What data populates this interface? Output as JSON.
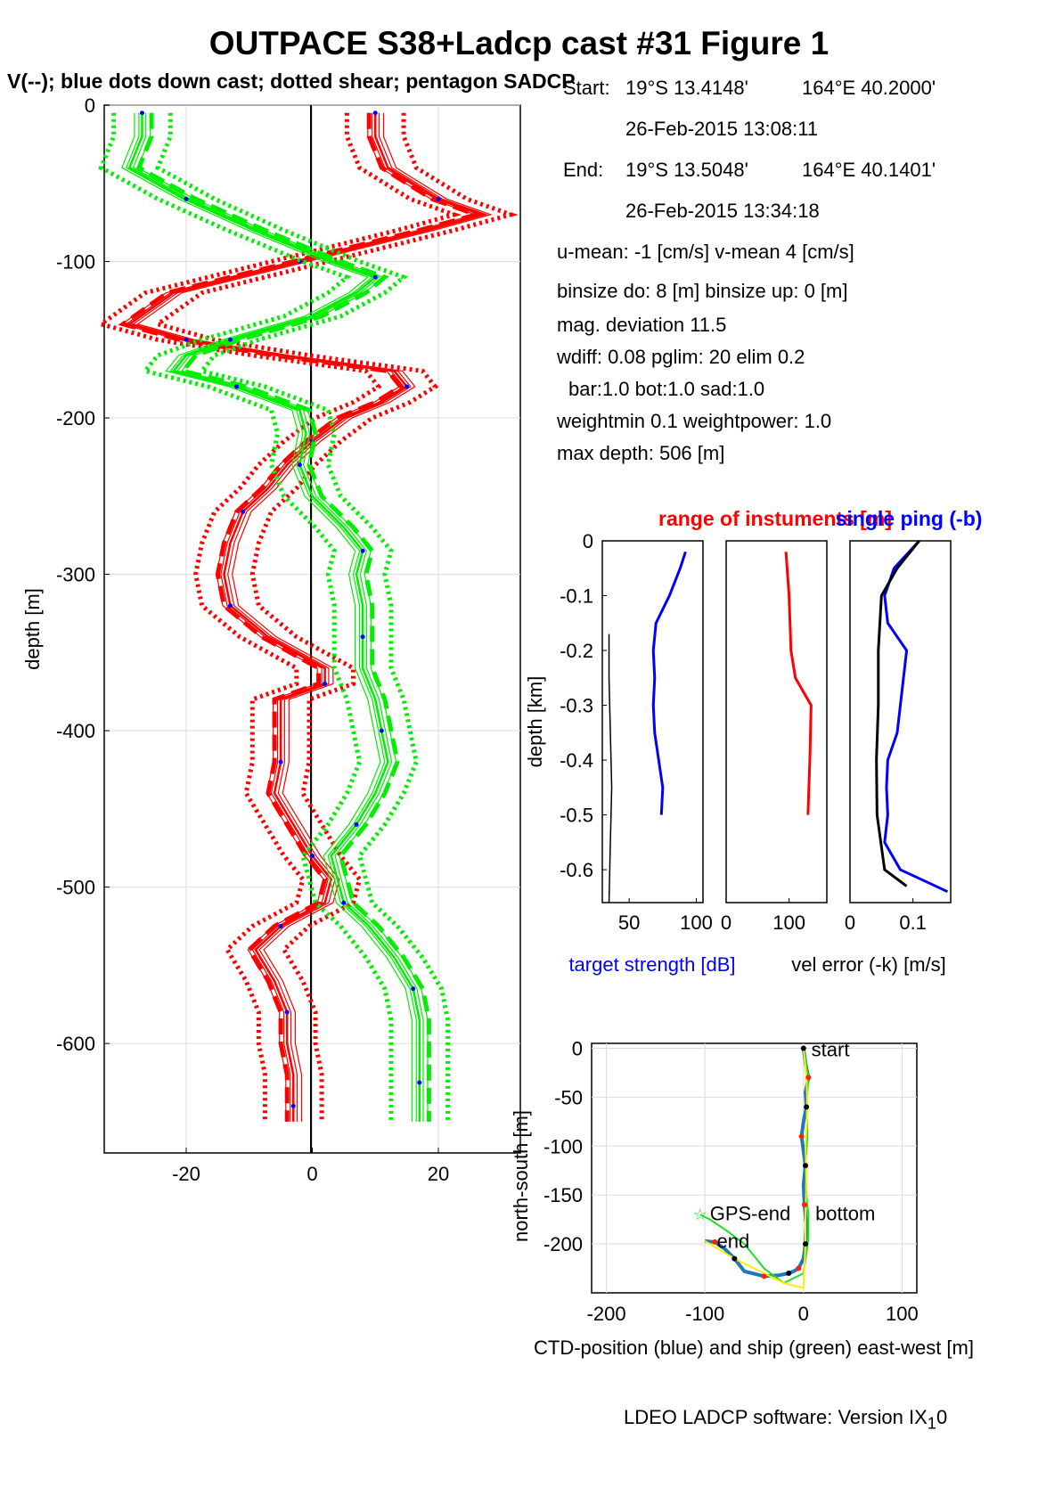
{
  "title": "OUTPACE S38+Ladcp cast #31  Figure 1",
  "subtitle": "V(--); blue dots down cast; dotted shear; pentagon SADCP",
  "info": {
    "start_label": "Start:",
    "start_lat": "19°S 13.4148'",
    "start_lon": "164°E 40.2000'",
    "start_time": "26-Feb-2015 13:08:11",
    "end_label": "End:",
    "end_lat": "19°S 13.5048'",
    "end_lon": "164°E 40.1401'",
    "end_time": "26-Feb-2015 13:34:18",
    "means": "u-mean:  -1 [cm/s]    v-mean   4 [cm/s]",
    "binsize": "binsize do: 8 [m]  binsize up:  0 [m]",
    "magdev": "mag. deviation 11.5",
    "wdiff": "wdiff: 0.08  pglim: 20  elim 0.2",
    "bar": "bar:1.0 bot:1.0 sad:1.0",
    "weight": "weightmin 0.1  weightpower: 1.0",
    "maxdepth": "max depth: 506 [m]"
  },
  "footer": "LDEO LADCP software: Version IX",
  "footer_sub": "1",
  "footer_tail": "0",
  "chart_data": [
    {
      "type": "line",
      "ylabel": "depth [m]",
      "xlim": [
        -33,
        33
      ],
      "ylim": [
        -670,
        0
      ],
      "xticks": [
        "-20",
        "0",
        "20"
      ],
      "yticks": [
        "0",
        "-100",
        "-200",
        "-300",
        "-400",
        "-500",
        "-600"
      ],
      "grid": true,
      "series": [
        {
          "color": "#ff0000",
          "style": "solid",
          "depth": [
            -5,
            -20,
            -40,
            -60,
            -70,
            -80,
            -100,
            -120,
            -140,
            -150,
            -160,
            -170,
            -180,
            -190,
            -200,
            -215,
            -230,
            -245,
            -260,
            -280,
            -300,
            -320,
            -340,
            -360,
            -370,
            -380,
            -400,
            -420,
            -440,
            -460,
            -480,
            -495,
            -510,
            -525,
            -540,
            -560,
            -580,
            -600,
            -620,
            -640,
            -650
          ],
          "values": [
            10,
            10,
            12,
            20,
            27,
            18,
            -2,
            -22,
            -29,
            -20,
            -5,
            13,
            15,
            11,
            5,
            0,
            -4,
            -7,
            -11,
            -13,
            -14,
            -13,
            -7,
            2,
            2,
            -5,
            -5,
            -5,
            -6,
            -3,
            0,
            3,
            2,
            -5,
            -9,
            -6,
            -4,
            -4,
            -3,
            -3,
            -3
          ]
        },
        {
          "color": "#00ee00",
          "style": "solid",
          "depth": [
            -5,
            -20,
            -40,
            -60,
            -80,
            -100,
            -110,
            -120,
            -135,
            -150,
            -160,
            -170,
            -180,
            -195,
            -210,
            -230,
            -250,
            -270,
            -285,
            -300,
            -320,
            -340,
            -360,
            -380,
            -400,
            -420,
            -440,
            -460,
            -480,
            -495,
            -510,
            -525,
            -545,
            -565,
            -585,
            -605,
            -625,
            -650
          ],
          "values": [
            -27,
            -27,
            -29,
            -20,
            -9,
            3,
            10,
            7,
            0,
            -13,
            -20,
            -22,
            -12,
            -2,
            -1,
            -2,
            0,
            5,
            8,
            7,
            8,
            8,
            8,
            10,
            11,
            12,
            10,
            7,
            3,
            4,
            5,
            9,
            13,
            16,
            17,
            17,
            17,
            17
          ]
        }
      ]
    },
    {
      "type": "line",
      "ylabel": "depth [km]",
      "xlabel": "target strength [dB]",
      "title": "range of instuments [m]",
      "title_right": "single ping (-b)",
      "xlim": [
        30,
        105
      ],
      "ylim": [
        -0.66,
        0
      ],
      "xticks": [
        "50",
        "100"
      ],
      "yticks": [
        "0",
        "-0.1",
        "-0.2",
        "-0.3",
        "-0.4",
        "-0.5",
        "-0.6"
      ],
      "series": [
        {
          "color": "#0000ff",
          "depth": [
            -0.02,
            -0.05,
            -0.1,
            -0.15,
            -0.2,
            -0.25,
            -0.3,
            -0.35,
            -0.4,
            -0.45,
            -0.5
          ],
          "values": [
            92,
            88,
            80,
            70,
            68,
            69,
            68,
            69,
            72,
            75,
            74
          ]
        },
        {
          "color": "#000000",
          "depth": [
            -0.17,
            -0.25,
            -0.35,
            -0.45,
            -0.55,
            -0.66
          ],
          "values": [
            35,
            35,
            36,
            37,
            36,
            35
          ]
        }
      ]
    },
    {
      "type": "line",
      "xlim": [
        0,
        160
      ],
      "ylim": [
        -0.66,
        0
      ],
      "xticks": [
        "0",
        "100"
      ],
      "series": [
        {
          "color": "#ff0000",
          "depth": [
            -0.02,
            -0.1,
            -0.2,
            -0.25,
            -0.3,
            -0.4,
            -0.5
          ],
          "values": [
            95,
            100,
            103,
            110,
            135,
            133,
            130
          ]
        }
      ]
    },
    {
      "type": "line",
      "xlabel": "vel error (-k) [m/s]",
      "xlim": [
        0,
        0.16
      ],
      "ylim": [
        -0.66,
        0
      ],
      "xticks": [
        "0",
        "0.1"
      ],
      "series": [
        {
          "color": "#0000ff",
          "depth": [
            0,
            -0.05,
            -0.1,
            -0.15,
            -0.2,
            -0.25,
            -0.3,
            -0.35,
            -0.4,
            -0.45,
            -0.5,
            -0.55,
            -0.6,
            -0.64
          ],
          "values": [
            0.11,
            0.07,
            0.055,
            0.06,
            0.09,
            0.085,
            0.08,
            0.075,
            0.06,
            0.058,
            0.06,
            0.055,
            0.08,
            0.155
          ]
        },
        {
          "color": "#000000",
          "depth": [
            0,
            -0.05,
            -0.1,
            -0.2,
            -0.3,
            -0.4,
            -0.5,
            -0.6,
            -0.63
          ],
          "values": [
            0.11,
            0.075,
            0.05,
            0.045,
            0.045,
            0.042,
            0.043,
            0.055,
            0.09
          ]
        }
      ]
    },
    {
      "type": "line",
      "xlabel": "CTD-position (blue) and ship (green) east-west [m]",
      "ylabel": "north-south [m]",
      "xlim": [
        -215,
        115
      ],
      "ylim": [
        -250,
        5
      ],
      "xticks": [
        "-200",
        "-100",
        "0",
        "100"
      ],
      "yticks": [
        "0",
        "-50",
        "-100",
        "-150",
        "-200"
      ],
      "grid": true,
      "labels": [
        "start",
        "GPS-end",
        "bottom",
        "end"
      ],
      "series": [
        {
          "color": "#1f77c4",
          "x": [
            0,
            2,
            5,
            2,
            3,
            0,
            -2,
            0,
            2,
            0,
            1,
            3,
            2,
            0,
            -5,
            -10,
            -15,
            -25,
            -40,
            -60,
            -70,
            -80,
            -90,
            -100
          ],
          "y": [
            0,
            -15,
            -30,
            -45,
            -60,
            -75,
            -90,
            -105,
            -120,
            -140,
            -160,
            -180,
            -200,
            -215,
            -225,
            -228,
            -230,
            -232,
            -233,
            -228,
            -215,
            -205,
            -198,
            -197
          ]
        },
        {
          "color": "#22dd22",
          "x": [
            0,
            5,
            3,
            4,
            2,
            3,
            5,
            5,
            0,
            -20,
            -40,
            -60,
            -80,
            -95,
            -105
          ],
          "y": [
            0,
            -30,
            -60,
            -90,
            -120,
            -150,
            -170,
            -195,
            -230,
            -240,
            -225,
            -200,
            -185,
            -175,
            -170
          ]
        },
        {
          "color": "#ffee00",
          "x": [
            0,
            3,
            4,
            2,
            3,
            2,
            2,
            0,
            -20,
            -40,
            -70,
            -95,
            -100
          ],
          "y": [
            0,
            -30,
            -60,
            -100,
            -130,
            -170,
            -200,
            -245,
            -240,
            -230,
            -215,
            -200,
            -197
          ]
        }
      ]
    }
  ]
}
